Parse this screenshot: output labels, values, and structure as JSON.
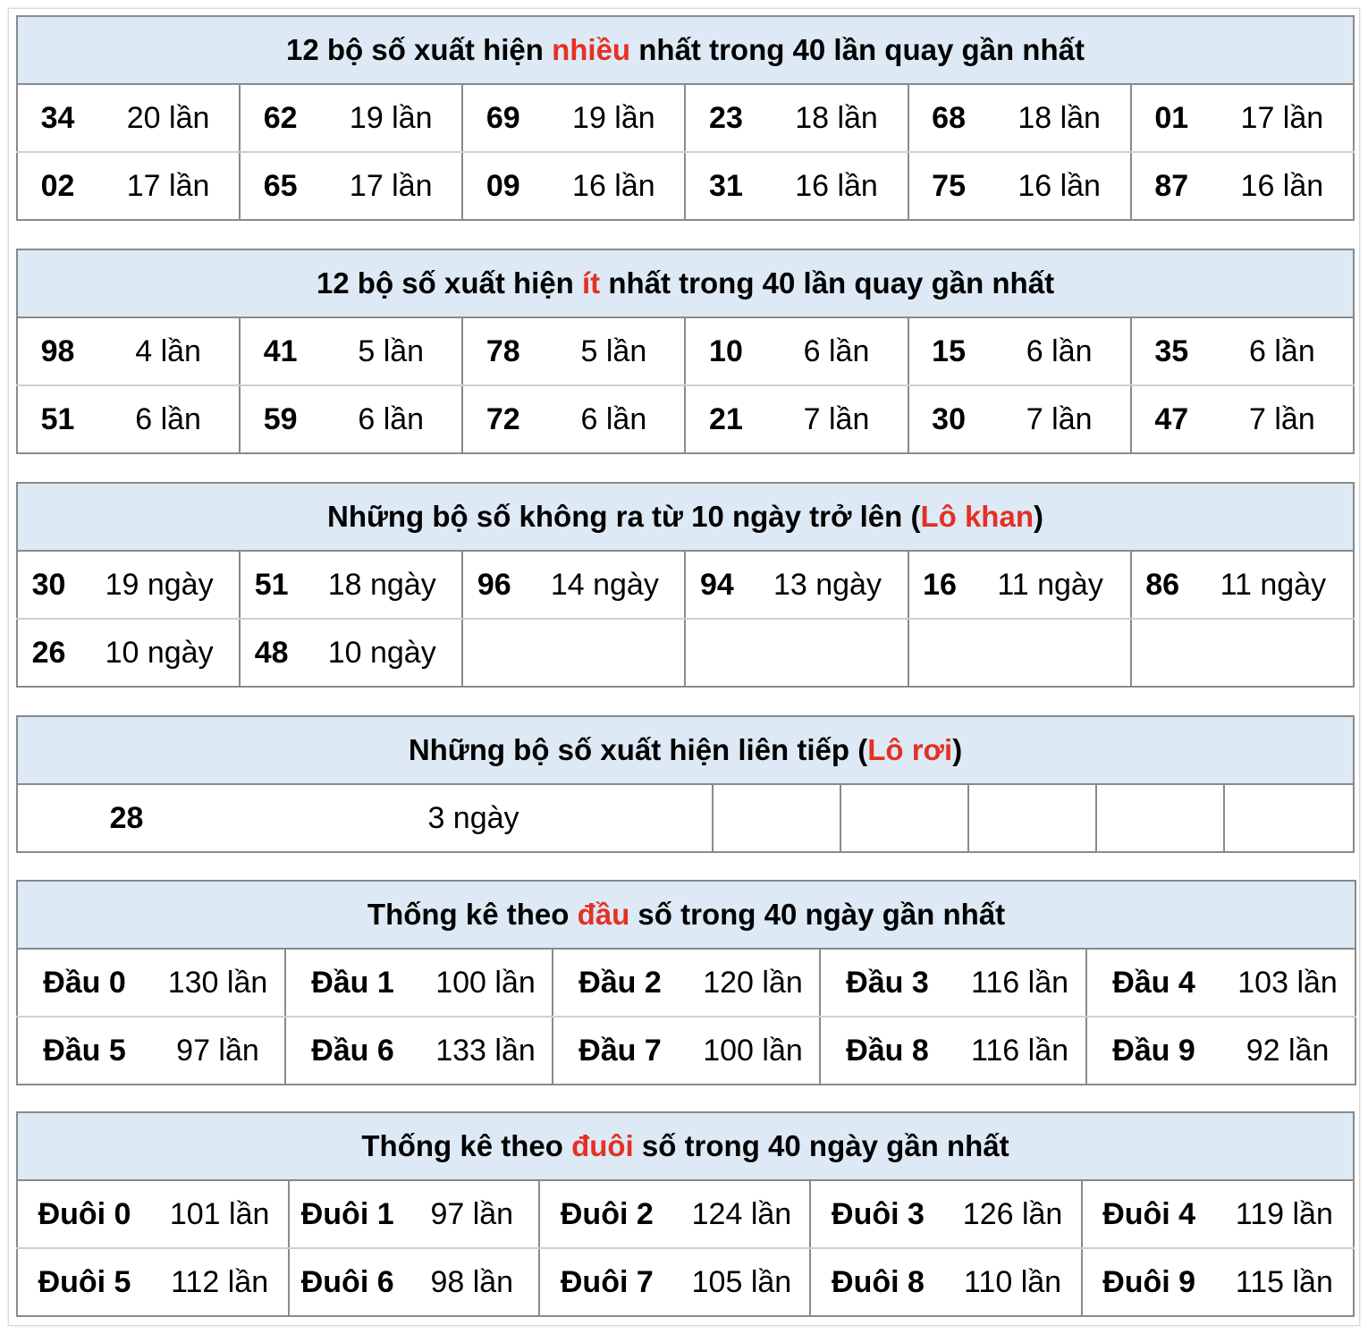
{
  "accent_color": "#e53024",
  "header_bg": "#dde9f4",
  "sections": [
    {
      "id": "most",
      "title": {
        "prefix": "12 bộ số xuất hiện ",
        "highlight": "nhiều",
        "suffix": " nhất trong 40 lần quay gần nhất"
      },
      "rows": [
        [
          [
            "34",
            "20 lần"
          ],
          [
            "62",
            "19 lần"
          ],
          [
            "69",
            "19 lần"
          ],
          [
            "23",
            "18 lần"
          ],
          [
            "68",
            "18 lần"
          ],
          [
            "01",
            "17 lần"
          ]
        ],
        [
          [
            "02",
            "17 lần"
          ],
          [
            "65",
            "17 lần"
          ],
          [
            "09",
            "16 lần"
          ],
          [
            "31",
            "16 lần"
          ],
          [
            "75",
            "16 lần"
          ],
          [
            "87",
            "16 lần"
          ]
        ]
      ]
    },
    {
      "id": "least",
      "title": {
        "prefix": "12 bộ số xuất hiện ",
        "highlight": "ít",
        "suffix": " nhất trong 40 lần quay gần nhất"
      },
      "rows": [
        [
          [
            "98",
            "4 lần"
          ],
          [
            "41",
            "5 lần"
          ],
          [
            "78",
            "5 lần"
          ],
          [
            "10",
            "6 lần"
          ],
          [
            "15",
            "6 lần"
          ],
          [
            "35",
            "6 lần"
          ]
        ],
        [
          [
            "51",
            "6 lần"
          ],
          [
            "59",
            "6 lần"
          ],
          [
            "72",
            "6 lần"
          ],
          [
            "21",
            "7 lần"
          ],
          [
            "30",
            "7 lần"
          ],
          [
            "47",
            "7 lần"
          ]
        ]
      ]
    },
    {
      "id": "lo-khan",
      "title": {
        "prefix": "Những bộ số không ra từ 10 ngày trở lên (",
        "highlight": "Lô khan",
        "suffix": ")"
      },
      "rows": [
        [
          [
            "30",
            "19 ngày"
          ],
          [
            "51",
            "18 ngày"
          ],
          [
            "96",
            "14 ngày"
          ],
          [
            "94",
            "13 ngày"
          ],
          [
            "16",
            "11 ngày"
          ],
          [
            "86",
            "11 ngày"
          ]
        ],
        [
          [
            "26",
            "10 ngày"
          ],
          [
            "48",
            "10 ngày"
          ],
          [
            "",
            ""
          ],
          [
            "",
            ""
          ],
          [
            "",
            ""
          ],
          [
            "",
            ""
          ]
        ]
      ]
    },
    {
      "id": "lo-roi",
      "title": {
        "prefix": "Những bộ số xuất hiện liên tiếp (",
        "highlight": "Lô rơi",
        "suffix": ")"
      },
      "rows": [
        [
          [
            "28",
            "3 ngày"
          ]
        ]
      ],
      "empty_cells": 5
    },
    {
      "id": "dau",
      "title": {
        "prefix": "Thống kê theo ",
        "highlight": "đầu",
        "suffix": " số trong 40 ngày gần nhất"
      },
      "rows": [
        [
          [
            "Đầu 0",
            "130 lần"
          ],
          [
            "Đầu 1",
            "100 lần"
          ],
          [
            "Đầu 2",
            "120 lần"
          ],
          [
            "Đầu 3",
            "116 lần"
          ],
          [
            "Đầu 4",
            "103 lần"
          ]
        ],
        [
          [
            "Đầu 5",
            "97 lần"
          ],
          [
            "Đầu 6",
            "133 lần"
          ],
          [
            "Đầu 7",
            "100 lần"
          ],
          [
            "Đầu 8",
            "116 lần"
          ],
          [
            "Đầu 9",
            "92 lần"
          ]
        ]
      ]
    },
    {
      "id": "duoi",
      "title": {
        "prefix": "Thống kê theo ",
        "highlight": "đuôi",
        "suffix": " số trong 40 ngày gần nhất"
      },
      "rows": [
        [
          [
            "Đuôi 0",
            "101 lần"
          ],
          [
            "Đuôi 1",
            "97 lần"
          ],
          [
            "Đuôi 2",
            "124 lần"
          ],
          [
            "Đuôi 3",
            "126 lần"
          ],
          [
            "Đuôi 4",
            "119 lần"
          ]
        ],
        [
          [
            "Đuôi 5",
            "112 lần"
          ],
          [
            "Đuôi 6",
            "98 lần"
          ],
          [
            "Đuôi 7",
            "105 lần"
          ],
          [
            "Đuôi 8",
            "110 lần"
          ],
          [
            "Đuôi 9",
            "115 lần"
          ]
        ]
      ]
    }
  ]
}
